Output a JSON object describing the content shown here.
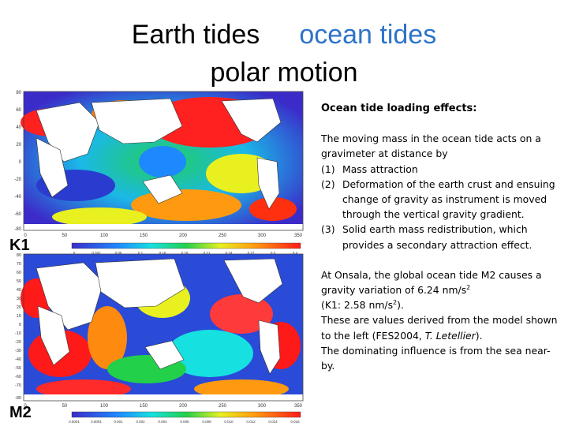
{
  "title": {
    "line1_left": "Earth tides",
    "line1_right": "ocean tides",
    "line2": "polar motion"
  },
  "maps": [
    {
      "label": "K1",
      "lat_ticks": [
        "80",
        "60",
        "40",
        "20",
        "0",
        "-20",
        "-40",
        "-60",
        "-80"
      ],
      "lon_ticks": [
        "0",
        "50",
        "100",
        "150",
        "200",
        "250",
        "300",
        "350"
      ],
      "colorbar_ticks": [
        "0",
        "0.032",
        "0.06",
        "0.1",
        "0.16",
        "0.18",
        "0.21",
        "0.24",
        "0.27",
        "0.3",
        "0.4"
      ]
    },
    {
      "label": "M2",
      "lat_ticks": [
        "80",
        "70",
        "60",
        "50",
        "40",
        "30",
        "20",
        "10",
        "0",
        "-10",
        "-20",
        "-30",
        "-40",
        "-50",
        "-60",
        "-70",
        "-80"
      ],
      "lon_ticks": [
        "0",
        "50",
        "100",
        "150",
        "200",
        "250",
        "300",
        "350"
      ],
      "colorbar_ticks": [
        "0.0001",
        "0.0001",
        "0.001",
        "0.002",
        "0.004",
        "0.006",
        "0.008",
        "0.010",
        "0.012",
        "0.014",
        "0.016"
      ]
    }
  ],
  "panel": {
    "heading": "Ocean tide loading effects:",
    "intro": "The moving mass in the ocean tide acts on a gravimeter at distance by",
    "items": [
      {
        "num": "(1)",
        "text": "Mass attraction"
      },
      {
        "num": "(2)",
        "text": "Deformation of the earth crust and ensuing change of gravity as instrument is moved through the vertical gravity gradient."
      },
      {
        "num": "(3)",
        "text": "Solid earth mass redistribution, which provides a secondary  attraction effect."
      }
    ],
    "para2_a": "At Onsala, the global ocean tide M2 causes a gravity variation of  6.24 nm/s",
    "para2_sup": "2",
    "para2_b": "(K1: 2.58 nm/s",
    "para2_b_sup": "2",
    "para2_b_end": ").",
    "para2_c": "These are values derived from the model shown to the left  (FES2004, ",
    "para2_c_italic": "T. Letellier",
    "para2_c_end": ").",
    "para2_d": "The dominating influence is from the sea near-by."
  }
}
